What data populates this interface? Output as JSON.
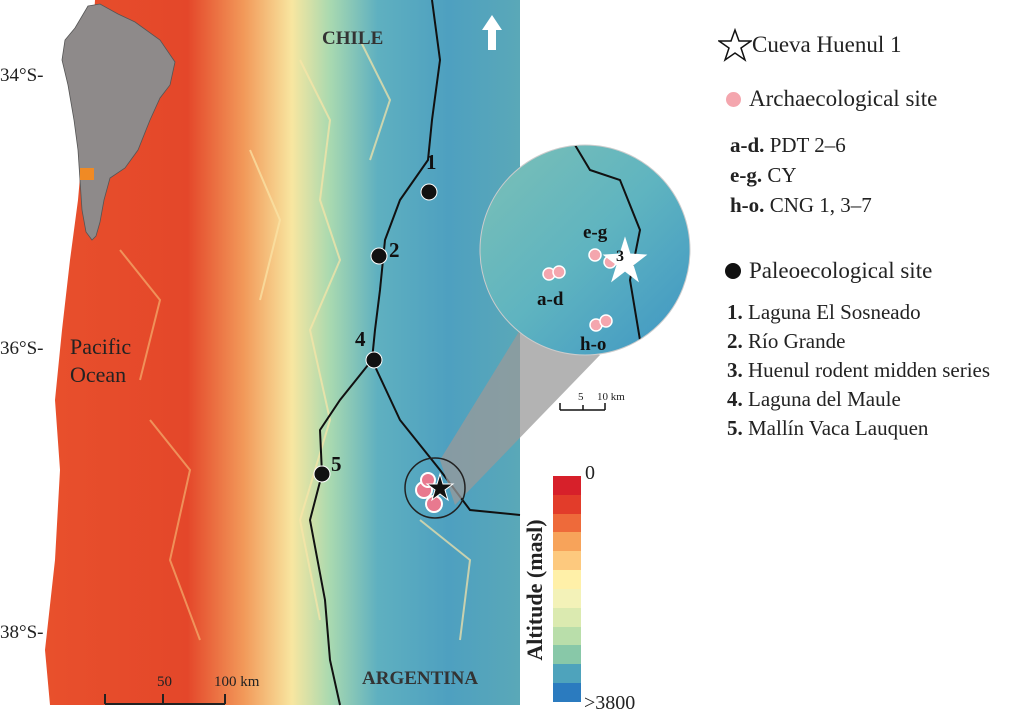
{
  "map": {
    "latitude_labels": [
      "34°S-",
      "36°S-",
      "38°S-"
    ],
    "ocean_label_line1": "Pacific",
    "ocean_label_line2": "Ocean",
    "country_north": "CHILE",
    "country_south": "ARGENTINA",
    "north_arrow": "north-arrow-icon",
    "scale_bar": {
      "mid": "50",
      "end": "100 km"
    },
    "site_numbers": [
      "1",
      "2",
      "4",
      "5"
    ],
    "inset_map_marker_color": "#f08a24"
  },
  "inset": {
    "labels": {
      "ad": "a-d",
      "eg": "e-g",
      "ho": "h-o",
      "star_number": "3"
    },
    "scale": {
      "mid": "5",
      "end": "10 km"
    }
  },
  "colorbar": {
    "title": "Altitude (masl)",
    "min_label": "0",
    "max_label": ">3800",
    "colors": [
      "#d7202a",
      "#e23c2a",
      "#ee6a3a",
      "#f7a35a",
      "#fdc97e",
      "#fff0a8",
      "#f3f2b8",
      "#dbeab0",
      "#b9deaa",
      "#88c8a8",
      "#4ea3bc",
      "#2b7bbf"
    ]
  },
  "legend": {
    "cave": "Cueva Huenul 1",
    "archaeological": "Archaecological site",
    "arch_items": [
      {
        "code": "a-d.",
        "name": "PDT 2–6"
      },
      {
        "code": "e-g.",
        "name": "CY"
      },
      {
        "code": "h-o.",
        "name": "CNG 1, 3–7"
      }
    ],
    "paleoecological": "Paleoecological site",
    "paleo_items": [
      {
        "code": "1.",
        "name": "Laguna El Sosneado"
      },
      {
        "code": "2.",
        "name": "Río Grande"
      },
      {
        "code": "3.",
        "name": "Huenul rodent midden series"
      },
      {
        "code": "4.",
        "name": "Laguna del Maule"
      },
      {
        "code": "5.",
        "name": "Mallín Vaca Lauquen"
      }
    ],
    "arch_color": "#f4a6ae",
    "paleo_color": "#111111"
  }
}
